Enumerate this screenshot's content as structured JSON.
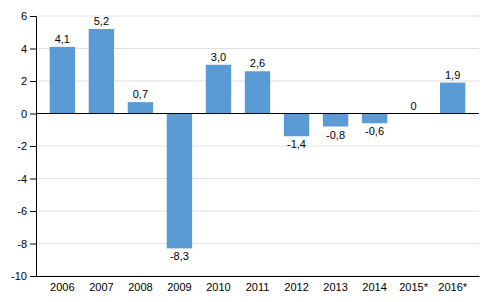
{
  "chart_data": {
    "type": "bar",
    "categories": [
      "2006",
      "2007",
      "2008",
      "2009",
      "2010",
      "2011",
      "2012",
      "2013",
      "2014",
      "2015*",
      "2016*"
    ],
    "values": [
      4.1,
      5.2,
      0.7,
      -8.3,
      3.0,
      2.6,
      -1.4,
      -0.8,
      -0.6,
      0.0,
      1.9
    ],
    "value_labels": [
      "4,1",
      "5,2",
      "0,7",
      "-8,3",
      "3,0",
      "2,6",
      "-1,4",
      "-0,8",
      "-0,6",
      "0",
      "1,9"
    ],
    "data_labels": true,
    "color": "#5b9bd5",
    "ylim": [
      -10,
      6
    ],
    "yticks": [
      -10,
      -8,
      -6,
      -4,
      -2,
      0,
      2,
      4,
      6
    ],
    "grid": true
  }
}
